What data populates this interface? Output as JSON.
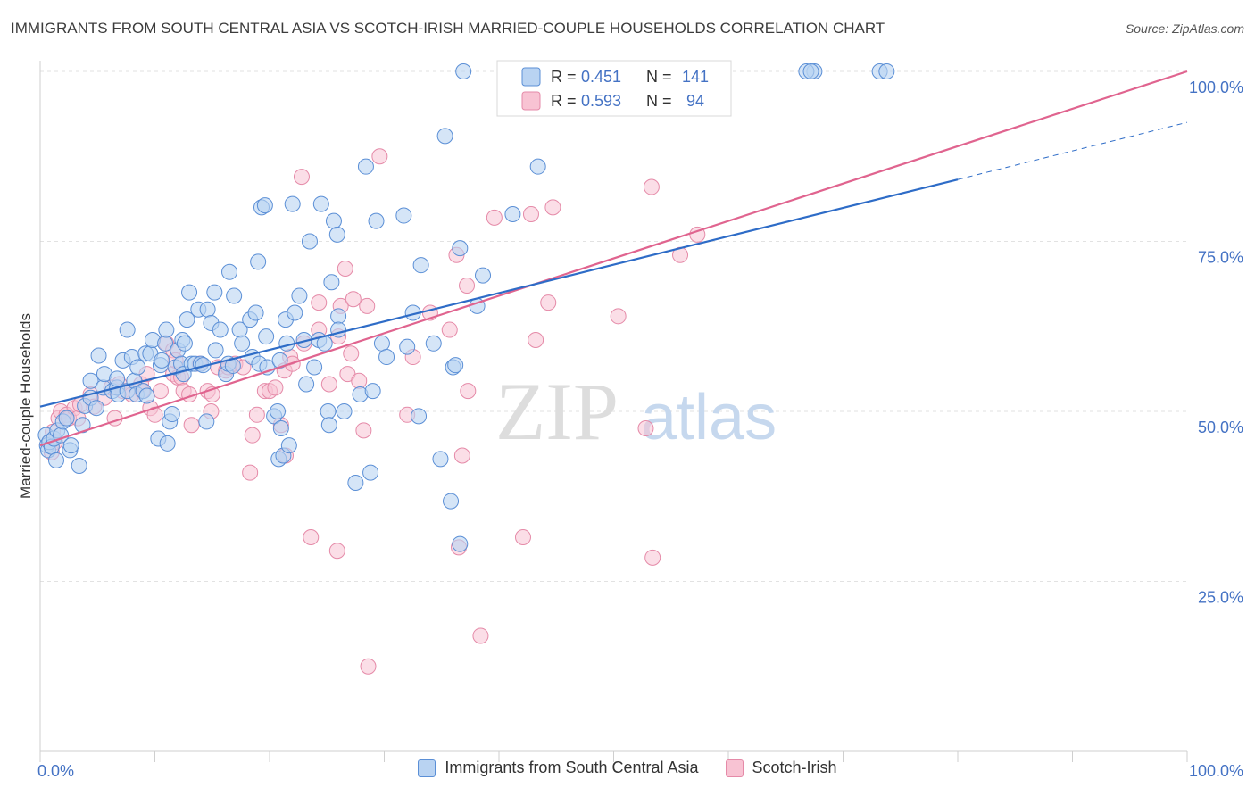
{
  "title": "IMMIGRANTS FROM SOUTH CENTRAL ASIA VS SCOTCH-IRISH MARRIED-COUPLE HOUSEHOLDS CORRELATION CHART",
  "source": "Source: ZipAtlas.com",
  "watermark": {
    "zip": "ZIP",
    "atlas": "atlas"
  },
  "colors": {
    "blue_fill": "#b9d3f2",
    "blue_stroke": "#5b8fd6",
    "blue_line": "#2e6cc7",
    "pink_fill": "#f8c3d3",
    "pink_stroke": "#e58aa8",
    "pink_line": "#e0648f",
    "tick_label": "#4472c4",
    "grid": "#e2e2e2"
  },
  "legend": {
    "rows": [
      {
        "r_label": "R =",
        "r_value": "0.451",
        "n_label": "N =",
        "n_value": "141"
      },
      {
        "r_label": "R =",
        "r_value": "0.593",
        "n_label": "N =",
        "n_value": "94"
      }
    ]
  },
  "bottom_legend": [
    {
      "name": "Immigrants from South Central Asia"
    },
    {
      "name": "Scotch-Irish"
    }
  ],
  "chart_data": {
    "type": "scatter",
    "title": "IMMIGRANTS FROM SOUTH CENTRAL ASIA VS SCOTCH-IRISH MARRIED-COUPLE HOUSEHOLDS CORRELATION CHART",
    "xlabel": "",
    "ylabel": "Married-couple Households",
    "xlim": [
      0,
      100
    ],
    "ylim": [
      0,
      100
    ],
    "x_tick_labels": [
      "0.0%",
      "100.0%"
    ],
    "y_ticks": [
      25,
      50,
      75,
      100
    ],
    "y_tick_labels": [
      "25.0%",
      "50.0%",
      "75.0%",
      "100.0%"
    ],
    "grid": true,
    "legend_position": "top-center",
    "series": [
      {
        "name": "Immigrants from South Central Asia",
        "R": 0.451,
        "N": 141,
        "trend": {
          "x": [
            0,
            80
          ],
          "y": [
            50.7,
            84.1
          ]
        },
        "trend_dashed": {
          "x": [
            80,
            100
          ],
          "y": [
            84.1,
            92.5
          ]
        },
        "points": [
          [
            0.5,
            46.5
          ],
          [
            0.6,
            45
          ],
          [
            0.7,
            44.3
          ],
          [
            0.8,
            45.5
          ],
          [
            1,
            44.8
          ],
          [
            1.2,
            46
          ],
          [
            1.4,
            42.8
          ],
          [
            1.5,
            47.2
          ],
          [
            1.8,
            46.5
          ],
          [
            2,
            48.5
          ],
          [
            2.3,
            49
          ],
          [
            2.6,
            44.3
          ],
          [
            2.7,
            45
          ],
          [
            3.4,
            42
          ],
          [
            3.7,
            48
          ],
          [
            3.9,
            50.8
          ],
          [
            4.4,
            54.5
          ],
          [
            4.4,
            52
          ],
          [
            4.9,
            50.5
          ],
          [
            5.1,
            58.2
          ],
          [
            5.5,
            53.5
          ],
          [
            5.6,
            55.5
          ],
          [
            6.3,
            53
          ],
          [
            6.7,
            53.5
          ],
          [
            6.7,
            54.8
          ],
          [
            6.8,
            52.5
          ],
          [
            7.2,
            57.5
          ],
          [
            7.6,
            53
          ],
          [
            7.6,
            62
          ],
          [
            8,
            58
          ],
          [
            8.2,
            54.5
          ],
          [
            8.4,
            52.5
          ],
          [
            8.5,
            56.5
          ],
          [
            9,
            53
          ],
          [
            9.2,
            58.5
          ],
          [
            9.3,
            52.3
          ],
          [
            9.6,
            58.5
          ],
          [
            9.8,
            60.5
          ],
          [
            10.3,
            46
          ],
          [
            10.5,
            56.8
          ],
          [
            10.6,
            57.5
          ],
          [
            10.9,
            60
          ],
          [
            11,
            62
          ],
          [
            11.1,
            45.3
          ],
          [
            11.3,
            48.5
          ],
          [
            11.5,
            49.6
          ],
          [
            11.8,
            56.5
          ],
          [
            12,
            59
          ],
          [
            12.3,
            57
          ],
          [
            12.4,
            60.5
          ],
          [
            12.5,
            55.5
          ],
          [
            12.6,
            60
          ],
          [
            12.8,
            63.5
          ],
          [
            13,
            67.5
          ],
          [
            13.2,
            57
          ],
          [
            13.5,
            57
          ],
          [
            13.8,
            65
          ],
          [
            14,
            57
          ],
          [
            14.2,
            56.8
          ],
          [
            14.5,
            48.5
          ],
          [
            14.6,
            65
          ],
          [
            14.9,
            63
          ],
          [
            15.2,
            67.5
          ],
          [
            15.3,
            59
          ],
          [
            15.7,
            62
          ],
          [
            16.2,
            55.5
          ],
          [
            16.4,
            57
          ],
          [
            16.5,
            70.5
          ],
          [
            16.8,
            56.7
          ],
          [
            16.9,
            67
          ],
          [
            17.4,
            62
          ],
          [
            17.6,
            60
          ],
          [
            18.3,
            63.5
          ],
          [
            18.5,
            58
          ],
          [
            18.8,
            64.5
          ],
          [
            19,
            72
          ],
          [
            19.1,
            57
          ],
          [
            19.3,
            80
          ],
          [
            19.6,
            80.3
          ],
          [
            19.7,
            61
          ],
          [
            19.8,
            56.5
          ],
          [
            20.4,
            49.3
          ],
          [
            20.7,
            50
          ],
          [
            20.8,
            43
          ],
          [
            20.9,
            57.5
          ],
          [
            21,
            47.5
          ],
          [
            21.2,
            43.5
          ],
          [
            21.4,
            63.5
          ],
          [
            21.5,
            60
          ],
          [
            21.7,
            45
          ],
          [
            22,
            80.5
          ],
          [
            22.2,
            64.5
          ],
          [
            22.6,
            67
          ],
          [
            23,
            60.5
          ],
          [
            23.2,
            54
          ],
          [
            23.5,
            75
          ],
          [
            23.9,
            56.5
          ],
          [
            24.3,
            60.5
          ],
          [
            24.5,
            80.5
          ],
          [
            24.8,
            60
          ],
          [
            25.1,
            50
          ],
          [
            25.2,
            48
          ],
          [
            25.4,
            69
          ],
          [
            25.6,
            78
          ],
          [
            25.9,
            76
          ],
          [
            26,
            64
          ],
          [
            26,
            62
          ],
          [
            26.5,
            50
          ],
          [
            27.5,
            39.5
          ],
          [
            27.9,
            52.5
          ],
          [
            28.4,
            86
          ],
          [
            28.8,
            41
          ],
          [
            29,
            53
          ],
          [
            29.3,
            78
          ],
          [
            29.8,
            60
          ],
          [
            30.2,
            58
          ],
          [
            31.7,
            78.8
          ],
          [
            32,
            59.5
          ],
          [
            32.5,
            64.5
          ],
          [
            33,
            49.3
          ],
          [
            33.2,
            71.5
          ],
          [
            34.3,
            60
          ],
          [
            34.9,
            43
          ],
          [
            35.3,
            90.5
          ],
          [
            35.8,
            36.8
          ],
          [
            36,
            56.5
          ],
          [
            36.2,
            56.8
          ],
          [
            36.6,
            74
          ],
          [
            36.9,
            100
          ],
          [
            36.6,
            30.5
          ],
          [
            38.1,
            65.5
          ],
          [
            38.6,
            70
          ],
          [
            41.2,
            79
          ],
          [
            43.4,
            86
          ],
          [
            48.9,
            100
          ],
          [
            48.3,
            100
          ],
          [
            67.5,
            100
          ],
          [
            66.8,
            100
          ],
          [
            73.2,
            100
          ],
          [
            73.8,
            100
          ],
          [
            67.2,
            100
          ]
        ]
      },
      {
        "name": "Scotch-Irish",
        "R": 0.593,
        "N": 94,
        "trend": {
          "x": [
            0,
            100
          ],
          "y": [
            45.0,
            100.0
          ]
        },
        "points": [
          [
            0.8,
            45.5
          ],
          [
            1,
            44
          ],
          [
            1.1,
            47
          ],
          [
            1.3,
            45.5
          ],
          [
            1.6,
            49
          ],
          [
            1.8,
            50
          ],
          [
            2.3,
            49.5
          ],
          [
            2.5,
            49
          ],
          [
            3,
            50.5
          ],
          [
            3.3,
            49
          ],
          [
            3.5,
            51
          ],
          [
            4.4,
            52.5
          ],
          [
            4.7,
            50.7
          ],
          [
            5.6,
            52
          ],
          [
            6.2,
            53.5
          ],
          [
            6.5,
            49
          ],
          [
            6.9,
            54
          ],
          [
            7.2,
            53
          ],
          [
            8,
            52.5
          ],
          [
            8.8,
            54
          ],
          [
            8.9,
            53
          ],
          [
            9.3,
            55.5
          ],
          [
            9.6,
            50.5
          ],
          [
            10,
            49.5
          ],
          [
            10.5,
            53
          ],
          [
            11,
            60
          ],
          [
            11.6,
            55.5
          ],
          [
            11.6,
            59
          ],
          [
            11.8,
            57.5
          ],
          [
            12,
            55
          ],
          [
            12.3,
            55
          ],
          [
            12.5,
            53
          ],
          [
            13,
            52.5
          ],
          [
            13.2,
            48
          ],
          [
            13.9,
            57
          ],
          [
            14.6,
            53
          ],
          [
            14.9,
            50
          ],
          [
            15,
            52.5
          ],
          [
            15.5,
            56.5
          ],
          [
            16.2,
            56
          ],
          [
            16.4,
            56.5
          ],
          [
            17,
            57
          ],
          [
            17.7,
            56.5
          ],
          [
            18.3,
            41
          ],
          [
            18.5,
            46.5
          ],
          [
            18.9,
            49.5
          ],
          [
            19.6,
            53
          ],
          [
            20,
            53
          ],
          [
            20.5,
            53.5
          ],
          [
            21,
            48
          ],
          [
            21.3,
            56
          ],
          [
            21.4,
            43.5
          ],
          [
            21.8,
            58
          ],
          [
            22,
            57
          ],
          [
            22.8,
            84.5
          ],
          [
            23,
            60
          ],
          [
            23.6,
            31.5
          ],
          [
            24.3,
            66
          ],
          [
            24.3,
            62
          ],
          [
            25.2,
            54
          ],
          [
            25.9,
            29.5
          ],
          [
            26,
            61
          ],
          [
            26.2,
            65.5
          ],
          [
            26.6,
            71
          ],
          [
            26.8,
            55.5
          ],
          [
            27.1,
            58.5
          ],
          [
            27.3,
            66.5
          ],
          [
            27.8,
            54.5
          ],
          [
            28.2,
            47.2
          ],
          [
            28.5,
            65.5
          ],
          [
            28.6,
            12.5
          ],
          [
            29.6,
            87.5
          ],
          [
            32,
            49.5
          ],
          [
            32.5,
            58
          ],
          [
            34,
            64.5
          ],
          [
            35.7,
            62
          ],
          [
            36.3,
            73
          ],
          [
            36.5,
            30
          ],
          [
            36.8,
            43.5
          ],
          [
            37.2,
            68.5
          ],
          [
            37.3,
            53
          ],
          [
            38.4,
            17
          ],
          [
            39.6,
            78.5
          ],
          [
            42.1,
            31.5
          ],
          [
            42.8,
            79
          ],
          [
            43.2,
            60.5
          ],
          [
            44.3,
            66
          ],
          [
            44.7,
            80
          ],
          [
            50.4,
            64
          ],
          [
            52.8,
            47.5
          ],
          [
            53.3,
            83
          ],
          [
            53.4,
            28.5
          ],
          [
            55.8,
            73
          ],
          [
            57.3,
            76
          ]
        ]
      }
    ]
  }
}
